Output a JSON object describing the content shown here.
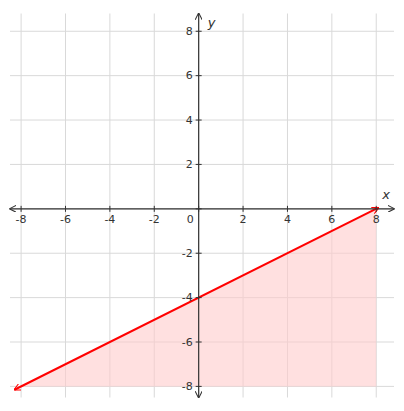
{
  "chart_data": {
    "type": "line",
    "xlabel": "x",
    "ylabel": "y",
    "xlim": [
      -8.5,
      8.8
    ],
    "ylim": [
      -8.5,
      8.8
    ],
    "xticks": [
      -8,
      -6,
      -4,
      -2,
      0,
      2,
      4,
      6,
      8
    ],
    "yticks": [
      -8,
      -6,
      -4,
      -2,
      0,
      2,
      4,
      6,
      8
    ],
    "grid": true,
    "series": [
      {
        "type": "area",
        "color": "#ffcccc",
        "x": [
          -8,
          8,
          8,
          -8
        ],
        "values": [
          -8,
          0,
          -8,
          -8
        ]
      },
      {
        "type": "line",
        "color": "#ff0000",
        "x": [
          -8.3,
          8.1
        ],
        "values": [
          -8.15,
          0.05
        ]
      }
    ]
  }
}
